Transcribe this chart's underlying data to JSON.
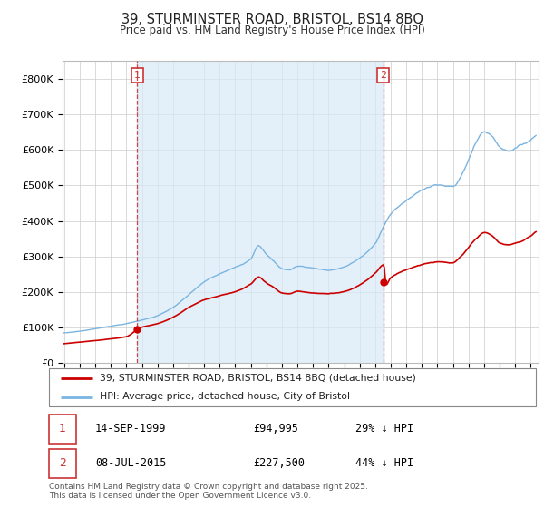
{
  "title": "39, STURMINSTER ROAD, BRISTOL, BS14 8BQ",
  "subtitle": "Price paid vs. HM Land Registry's House Price Index (HPI)",
  "sale1_date": "14-SEP-1999",
  "sale1_price": 94995,
  "sale1_hpi": "29% ↓ HPI",
  "sale2_date": "08-JUL-2015",
  "sale2_price": 227500,
  "sale2_hpi": "44% ↓ HPI",
  "legend_line1": "39, STURMINSTER ROAD, BRISTOL, BS14 8BQ (detached house)",
  "legend_line2": "HPI: Average price, detached house, City of Bristol",
  "footer": "Contains HM Land Registry data © Crown copyright and database right 2025.\nThis data is licensed under the Open Government Licence v3.0.",
  "hpi_color": "#7ab4e0",
  "hpi_fill_color": "#d8eaf7",
  "price_color": "#cc0000",
  "vline_color": "#cc3333",
  "background_color": "#ffffff",
  "grid_color": "#cccccc",
  "ylim": [
    0,
    850000
  ],
  "xlim_start": 1994.9,
  "xlim_end": 2025.5
}
